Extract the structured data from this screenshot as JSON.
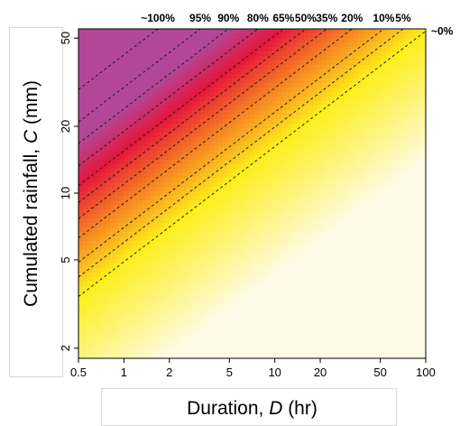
{
  "chart_data": {
    "type": "heatmap",
    "title": "",
    "xlabel": "Duration, D (hr)",
    "ylabel": "Cumulated rainfall, C (mm)",
    "xlabel_parts": [
      "Duration, ",
      "D",
      " (hr)"
    ],
    "ylabel_parts": [
      "Cumulated rainfall, ",
      "C",
      " (mm)"
    ],
    "x_scale": "log",
    "y_scale": "log",
    "xlim": [
      0.5,
      100
    ],
    "ylim": [
      1.8,
      55
    ],
    "x_ticks": [
      0.5,
      1,
      2,
      5,
      10,
      20,
      50,
      100
    ],
    "x_tick_labels": [
      "0.5",
      "1",
      "2",
      "5",
      "10",
      "20",
      "50",
      "100"
    ],
    "y_ticks": [
      2,
      5,
      10,
      20,
      50
    ],
    "y_tick_labels": [
      "2",
      "5",
      "10",
      "20",
      "50"
    ],
    "threshold_lines": [
      {
        "label": "~0%",
        "c_at_d1": 4.9
      },
      {
        "label": "5%",
        "c_at_d1": 6.0
      },
      {
        "label": "10%",
        "c_at_d1": 7.0
      },
      {
        "label": "20%",
        "c_at_d1": 9.0
      },
      {
        "label": "35%",
        "c_at_d1": 11.0
      },
      {
        "label": "50%",
        "c_at_d1": 13.0
      },
      {
        "label": "65%",
        "c_at_d1": 15.5
      },
      {
        "label": "80%",
        "c_at_d1": 19.0
      },
      {
        "label": "90%",
        "c_at_d1": 24.0
      },
      {
        "label": "95%",
        "c_at_d1": 30.0
      },
      {
        "label": "~100%",
        "c_at_d1": 42.0
      }
    ],
    "line_slope_loglog": 0.52,
    "colors": {
      "low": "#fefbe6",
      "yellow": "#fdee1a",
      "orange": "#f57a23",
      "red": "#e5163a",
      "purple": "#b2479a",
      "line": "#1a1a1a"
    }
  }
}
